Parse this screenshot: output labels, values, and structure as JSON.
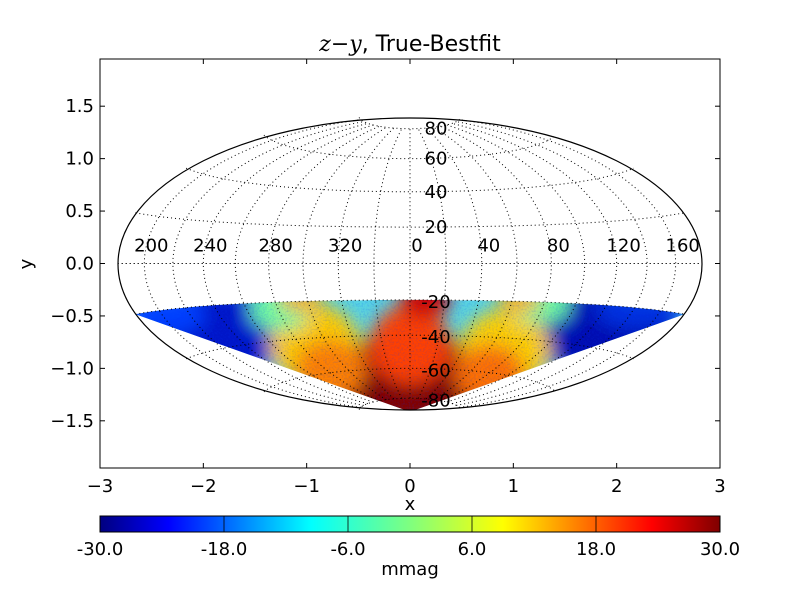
{
  "chart_data": {
    "type": "heatmap",
    "projection": "hammer-aitoff",
    "title": {
      "math": "z−y",
      "rest": ", True-Bestfit"
    },
    "xlabel": "x",
    "ylabel": "y",
    "xlim": [
      -3,
      3
    ],
    "ylim": [
      -1.95,
      1.95
    ],
    "xticks": [
      -3,
      -2,
      -1,
      0,
      1,
      2,
      3
    ],
    "xtick_labels": [
      "−3",
      "−2",
      "−1",
      "0",
      "1",
      "2",
      "3"
    ],
    "yticks": [
      1.5,
      1.0,
      0.5,
      0.0,
      -0.5,
      -1.0,
      -1.5
    ],
    "ytick_labels": [
      "1.5",
      "1.0",
      "0.5",
      "0.0",
      "−0.5",
      "−1.0",
      "−1.5"
    ],
    "meridian_labels": [
      {
        "lon": 200,
        "text": "200"
      },
      {
        "lon": 240,
        "text": "240"
      },
      {
        "lon": 280,
        "text": "280"
      },
      {
        "lon": 320,
        "text": "320"
      },
      {
        "lon": 0,
        "text": "0"
      },
      {
        "lon": 40,
        "text": "40"
      },
      {
        "lon": 80,
        "text": "80"
      },
      {
        "lon": 120,
        "text": "120"
      },
      {
        "lon": 160,
        "text": "160"
      }
    ],
    "parallel_labels": [
      {
        "lat": 80,
        "text": "80"
      },
      {
        "lat": 60,
        "text": "60"
      },
      {
        "lat": 40,
        "text": "40"
      },
      {
        "lat": 20,
        "text": "20"
      },
      {
        "lat": -20,
        "text": "-20"
      },
      {
        "lat": -40,
        "text": "-40"
      },
      {
        "lat": -60,
        "text": "-60"
      },
      {
        "lat": -80,
        "text": "-80"
      }
    ],
    "data_coverage_lat_max": -20,
    "colorbar": {
      "min": -30,
      "max": 30,
      "ticks": [
        -30,
        -18,
        -6,
        6,
        18,
        30
      ],
      "tick_labels": [
        "-30.0",
        "-18.0",
        "-6.0",
        "6.0",
        "18.0",
        "30.0"
      ],
      "label": "mmag",
      "colormap": "jet"
    },
    "grid": true
  }
}
